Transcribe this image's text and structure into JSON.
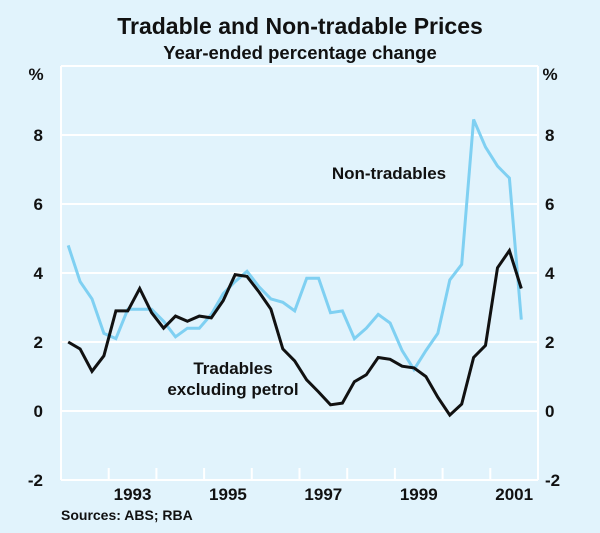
{
  "chart_data": {
    "type": "line",
    "title": "Tradable and Non-tradable Prices",
    "subtitle": "Year-ended percentage change",
    "ylabel_left": "%",
    "ylabel_right": "%",
    "xlabel": "",
    "xlim": [
      1992.0,
      2002.0
    ],
    "ylim": [
      -2,
      10
    ],
    "yticks": [
      -2,
      0,
      2,
      4,
      6,
      8
    ],
    "ytick_labels": [
      "-2",
      "0",
      "2",
      "4",
      "6",
      "8"
    ],
    "xtick_labels": [
      {
        "label": "1993",
        "x": 1993.5
      },
      {
        "label": "1995",
        "x": 1995.5
      },
      {
        "label": "1997",
        "x": 1997.5
      },
      {
        "label": "1999",
        "x": 1999.5
      },
      {
        "label": "2001",
        "x": 2001.5
      }
    ],
    "xtick_marks": [
      1993,
      1994,
      1995,
      1996,
      1997,
      1998,
      1999,
      2000,
      2001
    ],
    "grid": true,
    "x": [
      1992.15,
      1992.4,
      1992.65,
      1992.9,
      1993.15,
      1993.4,
      1993.65,
      1993.9,
      1994.15,
      1994.4,
      1994.65,
      1994.9,
      1995.15,
      1995.4,
      1995.65,
      1995.9,
      1996.15,
      1996.4,
      1996.65,
      1996.9,
      1997.15,
      1997.4,
      1997.65,
      1997.9,
      1998.15,
      1998.4,
      1998.65,
      1998.9,
      1999.15,
      1999.4,
      1999.65,
      1999.9,
      2000.15,
      2000.4,
      2000.65,
      2000.9,
      2001.15,
      2001.4,
      2001.65
    ],
    "series": [
      {
        "name": "Non-tradables",
        "color": "#7fd0f2",
        "values": [
          4.8,
          3.75,
          3.25,
          2.25,
          2.1,
          2.95,
          2.95,
          2.95,
          2.6,
          2.15,
          2.4,
          2.4,
          2.8,
          3.4,
          3.75,
          4.05,
          3.6,
          3.25,
          3.15,
          2.9,
          3.85,
          3.85,
          2.85,
          2.9,
          2.1,
          2.4,
          2.8,
          2.55,
          1.75,
          1.2,
          1.75,
          2.25,
          3.8,
          4.25,
          8.45,
          7.65,
          7.1,
          6.75,
          2.65
        ]
      },
      {
        "name": "Tradables excluding petrol",
        "color": "#111111",
        "values": [
          2.0,
          1.8,
          1.15,
          1.6,
          2.9,
          2.9,
          3.55,
          2.85,
          2.4,
          2.75,
          2.6,
          2.75,
          2.7,
          3.2,
          3.95,
          3.9,
          3.45,
          2.95,
          1.8,
          1.45,
          0.9,
          0.55,
          0.18,
          0.23,
          0.85,
          1.05,
          1.55,
          1.5,
          1.3,
          1.25,
          1.0,
          0.4,
          -0.12,
          0.2,
          1.55,
          1.9,
          4.15,
          4.65,
          3.55
        ]
      }
    ],
    "annotations": [
      {
        "text": "Non-tradables",
        "series": "Non-tradables"
      },
      {
        "text": "Tradables",
        "series": "Tradables excluding petrol"
      },
      {
        "text": "excluding petrol",
        "series": "Tradables excluding petrol"
      }
    ],
    "source": "Sources: ABS; RBA"
  }
}
